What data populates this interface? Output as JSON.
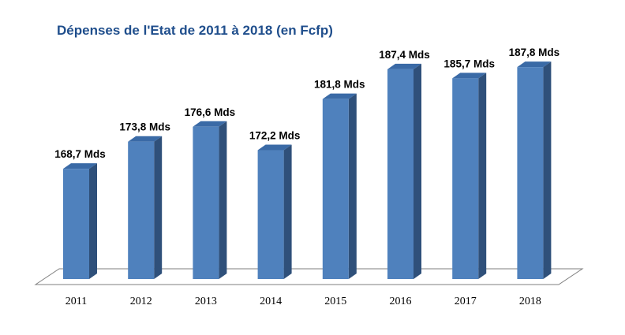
{
  "chart_data": {
    "type": "bar",
    "title": "Dépenses de l'Etat de 2011 à 2018  (en Fcfp)",
    "categories": [
      "2011",
      "2012",
      "2013",
      "2014",
      "2015",
      "2016",
      "2017",
      "2018"
    ],
    "values": [
      168.7,
      173.8,
      176.6,
      172.2,
      181.8,
      187.4,
      185.7,
      187.8
    ],
    "data_labels": [
      "168,7 Mds",
      "173,8 Mds",
      "176,6 Mds",
      "172,2 Mds",
      "181,8 Mds",
      "187,4 Mds",
      "185,7 Mds",
      "187,8 Mds"
    ],
    "xlabel": "",
    "ylabel": "",
    "ylim": [
      148,
      193
    ],
    "grid": false,
    "legend": "none",
    "style": "3d-column",
    "colors": {
      "title": "#1F4E8C",
      "bar_front": "#4F81BD",
      "bar_side": "#2F507A",
      "bar_top": "#3A6AA6",
      "floor_edge": "#7F7F7F"
    }
  }
}
